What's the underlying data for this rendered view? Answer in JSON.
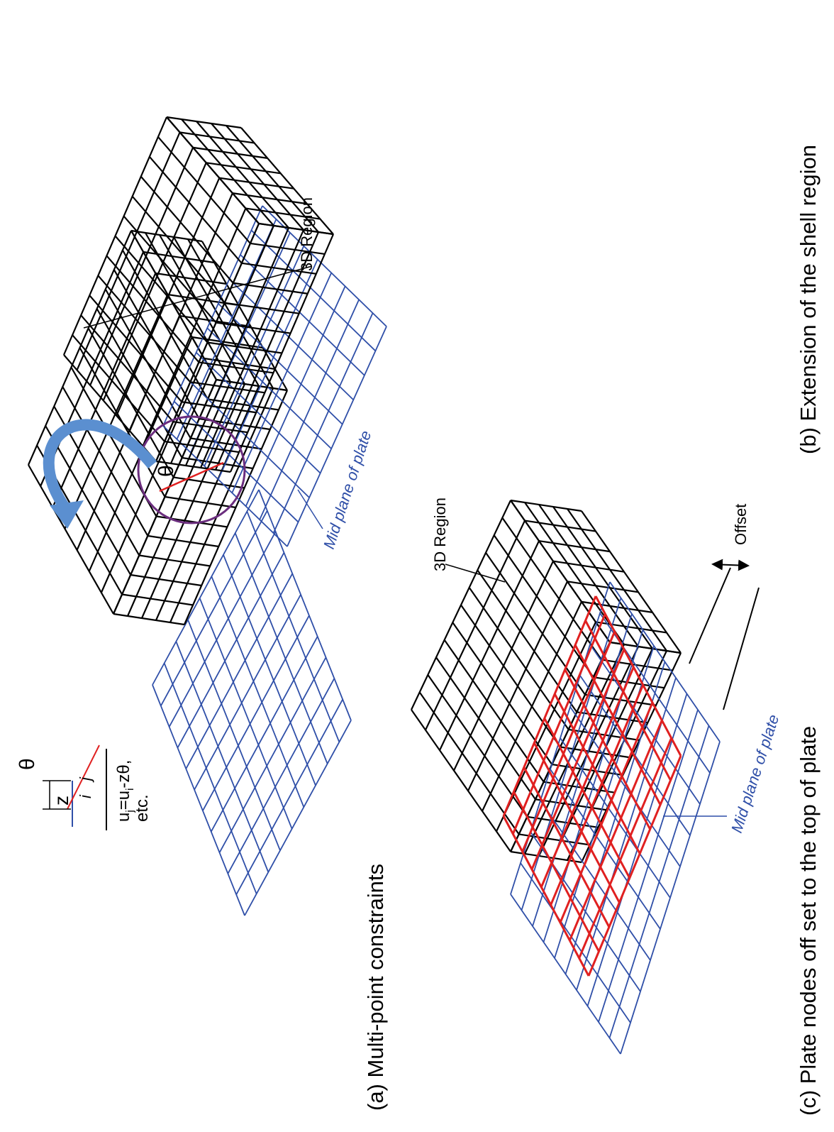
{
  "panel_a": {
    "caption": "(a) Multi-point constraints",
    "inset_theta": "θ",
    "inset_z": "z",
    "node_j": "j",
    "node_i": "i",
    "equation": {
      "u1": "u",
      "sub1": "j",
      "mid": "=u",
      "sub2": "i",
      "end": "-zθ,",
      "etc": "etc."
    },
    "circle_theta": "θ"
  },
  "panel_b": {
    "caption": "(b) Extension of the shell region",
    "region_label": "3D Region",
    "plate_label": "Mid plane of plate"
  },
  "panel_c": {
    "caption": "(c) Plate nodes off set to the top of plate",
    "region_label": "3D Region",
    "plate_label": "Mid plane of plate",
    "offset_label": "Offset"
  }
}
